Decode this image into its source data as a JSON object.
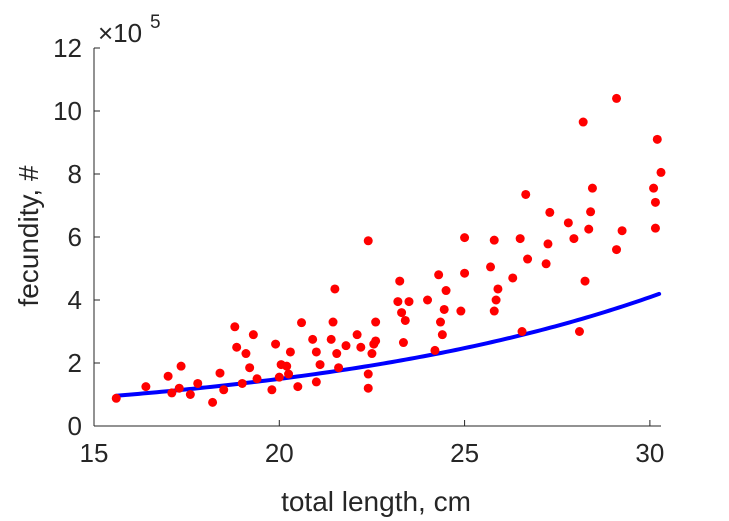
{
  "chart_data": {
    "type": "scatter",
    "title": "",
    "xlabel": "total length, cm",
    "ylabel": "fecundity, #",
    "xlim": [
      15,
      30.3
    ],
    "ylim": [
      0,
      12
    ],
    "y_scale_factor_label": "×10",
    "y_scale_factor_exponent": "5",
    "xticks": [
      15,
      20,
      25,
      30
    ],
    "xtick_labels": [
      "15",
      "20",
      "25",
      "30"
    ],
    "yticks": [
      0,
      2,
      4,
      6,
      8,
      10,
      12
    ],
    "ytick_labels": [
      "0",
      "2",
      "4",
      "6",
      "8",
      "10",
      "12"
    ],
    "grid": false,
    "legend": "none",
    "colors": {
      "points": "#ff0000",
      "fit": "#0000ff",
      "axes": "#262626"
    },
    "series": [
      {
        "kind": "scatter",
        "points": [
          [
            15.6,
            0.88
          ],
          [
            16.4,
            1.25
          ],
          [
            17.0,
            1.58
          ],
          [
            17.1,
            1.05
          ],
          [
            17.3,
            1.2
          ],
          [
            17.35,
            1.9
          ],
          [
            17.6,
            1.0
          ],
          [
            17.8,
            1.35
          ],
          [
            18.2,
            0.75
          ],
          [
            18.4,
            1.68
          ],
          [
            18.5,
            1.15
          ],
          [
            18.8,
            3.15
          ],
          [
            18.85,
            2.5
          ],
          [
            19.0,
            1.35
          ],
          [
            19.1,
            2.3
          ],
          [
            19.2,
            1.85
          ],
          [
            19.3,
            2.9
          ],
          [
            19.4,
            1.5
          ],
          [
            19.8,
            1.15
          ],
          [
            19.9,
            2.6
          ],
          [
            20.0,
            1.55
          ],
          [
            20.05,
            1.95
          ],
          [
            20.2,
            1.9
          ],
          [
            20.25,
            1.65
          ],
          [
            20.3,
            2.35
          ],
          [
            20.5,
            1.25
          ],
          [
            20.6,
            3.28
          ],
          [
            20.9,
            2.75
          ],
          [
            21.0,
            2.35
          ],
          [
            21.0,
            1.4
          ],
          [
            21.1,
            1.95
          ],
          [
            21.4,
            2.75
          ],
          [
            21.45,
            3.3
          ],
          [
            21.5,
            4.35
          ],
          [
            21.55,
            2.3
          ],
          [
            21.6,
            1.85
          ],
          [
            21.8,
            2.55
          ],
          [
            22.1,
            2.9
          ],
          [
            22.2,
            2.5
          ],
          [
            22.4,
            5.88
          ],
          [
            22.4,
            1.65
          ],
          [
            22.4,
            1.2
          ],
          [
            22.5,
            2.3
          ],
          [
            22.55,
            2.6
          ],
          [
            22.6,
            3.3
          ],
          [
            22.6,
            2.7
          ],
          [
            23.2,
            3.95
          ],
          [
            23.25,
            4.6
          ],
          [
            23.3,
            3.6
          ],
          [
            23.35,
            2.65
          ],
          [
            23.4,
            3.35
          ],
          [
            23.5,
            3.95
          ],
          [
            24.0,
            4.0
          ],
          [
            24.2,
            2.4
          ],
          [
            24.3,
            4.8
          ],
          [
            24.35,
            3.3
          ],
          [
            24.4,
            2.9
          ],
          [
            24.45,
            3.7
          ],
          [
            24.5,
            4.3
          ],
          [
            24.9,
            3.65
          ],
          [
            25.0,
            5.98
          ],
          [
            25.0,
            4.85
          ],
          [
            25.7,
            5.05
          ],
          [
            25.8,
            5.9
          ],
          [
            25.8,
            3.65
          ],
          [
            25.85,
            4.0
          ],
          [
            25.9,
            4.35
          ],
          [
            26.3,
            4.7
          ],
          [
            26.5,
            5.95
          ],
          [
            26.55,
            3.0
          ],
          [
            26.65,
            7.35
          ],
          [
            26.7,
            5.3
          ],
          [
            27.2,
            5.15
          ],
          [
            27.25,
            5.78
          ],
          [
            27.3,
            6.78
          ],
          [
            27.8,
            6.45
          ],
          [
            27.95,
            5.95
          ],
          [
            28.1,
            3.0
          ],
          [
            28.2,
            9.65
          ],
          [
            28.25,
            4.6
          ],
          [
            28.35,
            6.25
          ],
          [
            28.4,
            6.8
          ],
          [
            28.45,
            7.55
          ],
          [
            29.1,
            5.6
          ],
          [
            29.1,
            10.4
          ],
          [
            29.25,
            6.2
          ],
          [
            30.1,
            7.55
          ],
          [
            30.15,
            7.1
          ],
          [
            30.2,
            9.1
          ],
          [
            30.3,
            8.05
          ],
          [
            30.15,
            6.28
          ]
        ]
      },
      {
        "kind": "line",
        "equation": "y = 0.2 * exp(0.1006 * x)",
        "x_range": [
          15.6,
          30.25
        ]
      }
    ]
  }
}
